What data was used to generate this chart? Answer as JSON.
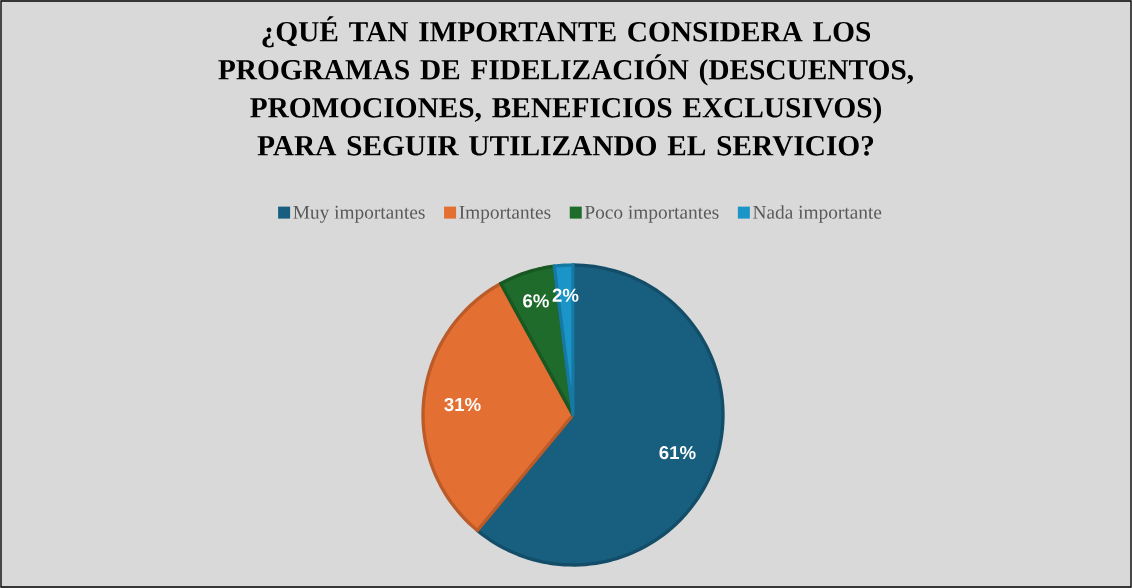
{
  "chart_data": {
    "type": "pie",
    "title": "¿QUÉ TAN IMPORTANTE CONSIDERA LOS PROGRAMAS DE FIDELIZACIÓN (DESCUENTOS, PROMOCIONES, BENEFICIOS EXCLUSIVOS) PARA SEGUIR UTILIZANDO EL SERVICIO?",
    "categories": [
      "Muy importantes",
      "Importantes",
      "Poco importantes",
      "Nada importante"
    ],
    "values": [
      61,
      31,
      6,
      2
    ],
    "value_labels": [
      "61%",
      "31%",
      "6%",
      "2%"
    ],
    "colors": [
      "#175e7f",
      "#e46f32",
      "#1e6b2b",
      "#1b94c8"
    ],
    "legend": "top"
  }
}
